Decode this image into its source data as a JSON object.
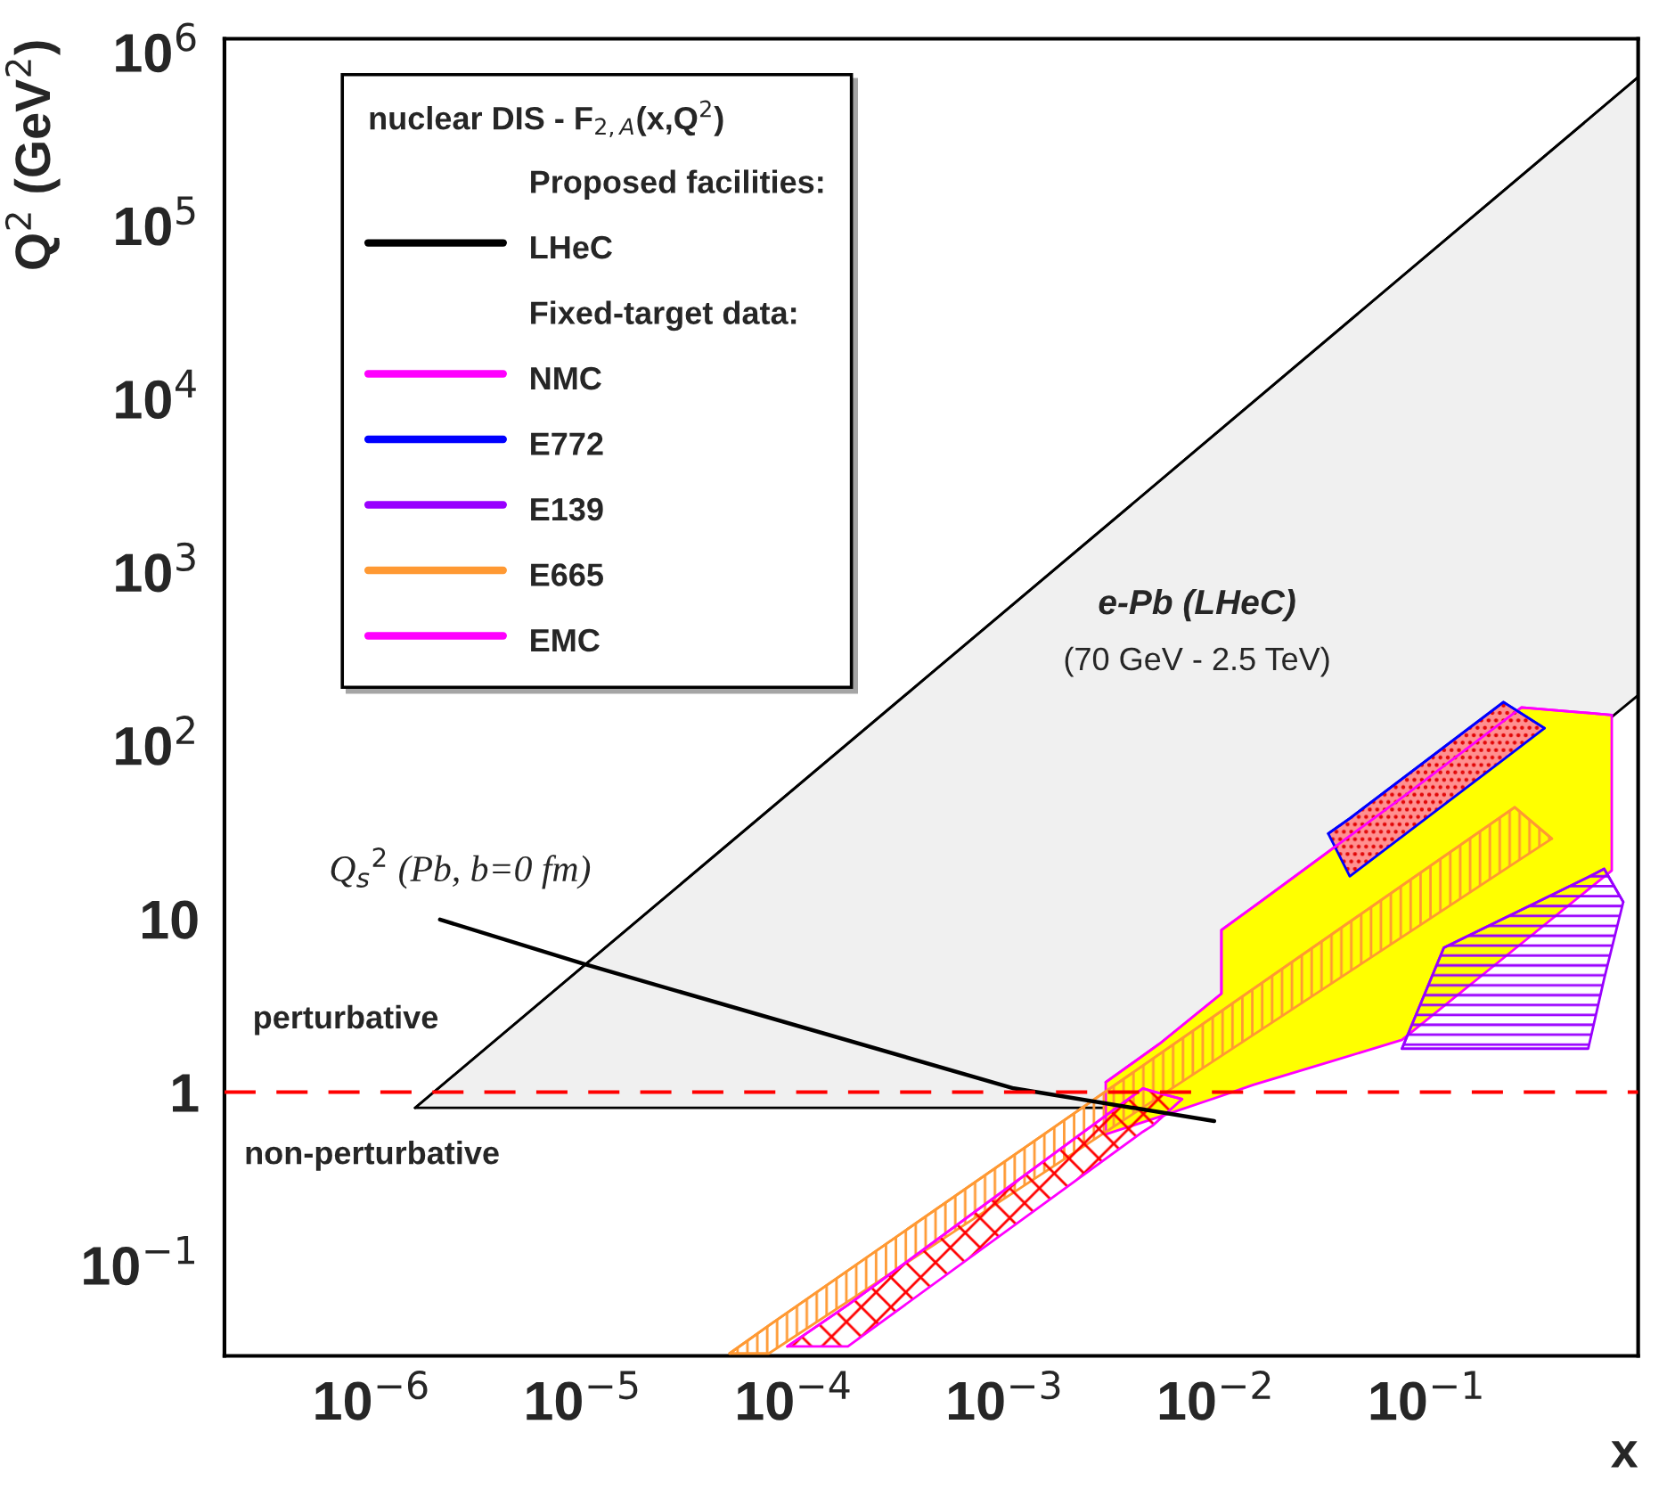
{
  "chart_data": {
    "type": "line",
    "xlabel": "x",
    "ylabel": "Q$^{2}$ (GeV$^{2}$)",
    "legend_title": "nuclear DIS - F$_{2,A}$(x,Q$^{2}$)",
    "log": "xy",
    "xlim": [
      2e-07,
      1
    ],
    "ylim": [
      0.03,
      1200000
    ],
    "xticks": [
      {
        "value": 1e-06,
        "label": "10$^{−6}$"
      },
      {
        "value": 1e-05,
        "label": "10$^{−5}$"
      },
      {
        "value": 0.0001,
        "label": "10$^{−4}$"
      },
      {
        "value": 0.001,
        "label": "10$^{−3}$"
      },
      {
        "value": 0.01,
        "label": "10$^{−2}$"
      },
      {
        "value": 0.1,
        "label": "10$^{−1}$"
      }
    ],
    "yticks": [
      {
        "value": 0.1,
        "label": "10$^{−1}$"
      },
      1,
      10,
      {
        "value": 100,
        "label": "10$^{2}$"
      },
      {
        "value": 1000,
        "label": "10$^{3}$"
      },
      {
        "value": 10000,
        "label": "10$^{4}$"
      },
      {
        "value": 100000,
        "label": "10$^{5}$"
      },
      {
        "value": 1000000,
        "label": "10$^{6}$"
      }
    ],
    "grid": false,
    "legend": "top left",
    "series": [
      {
        "name": "LHeC",
        "color": "#000000",
        "x": [
          1.6e-06,
          0.0042,
          1
        ],
        "lower": [
          0.81,
          0.81,
          195
        ],
        "upper": [
          0.81,
          2600,
          720000
        ],
        "values": [
          0.81,
          2600,
          720000
        ]
      },
      {
        "name": "NMC",
        "color": "#ff00ff",
        "x": [
          0.003,
          0.0054,
          0.0106,
          0.0106,
          0.015,
          0.035,
          0.076,
          0.28,
          0.75
        ],
        "lower": [
          0.57,
          0.72,
          0.95,
          0.95,
          1.1,
          1.5,
          2.0,
          7.2,
          19
        ],
        "upper": [
          1.14,
          1.9,
          3.7,
          8.6,
          11.7,
          25,
          50,
          166,
          150
        ],
        "values": [
          1.14,
          1.9,
          3.7,
          8.6,
          11.7,
          25,
          50,
          166,
          150
        ]
      },
      {
        "name": "E772",
        "color": "#0000ff",
        "x": [
          0.034,
          0.043,
          0.23,
          0.36
        ],
        "lower": [
          31,
          17.6,
          83,
          126
        ],
        "upper": [
          31,
          38,
          178,
          126
        ],
        "values": [
          31,
          38,
          178,
          126
        ]
      },
      {
        "name": "E139",
        "color": "#9900ff",
        "x": [
          0.076,
          0.12,
          0.58,
          0.69,
          0.85
        ],
        "lower": [
          1.78,
          1.78,
          1.78,
          4.5,
          12.5
        ],
        "upper": [
          1.78,
          6.8,
          17.4,
          19.4,
          12.5
        ],
        "values": [
          1.78,
          6.8,
          17.4,
          19.4,
          12.5
        ]
      },
      {
        "name": "E665",
        "color": "#ff9933",
        "x": [
          4.95e-05,
          7.6e-05,
          0.26,
          0.39
        ],
        "lower": [
          0.031,
          0.031,
          21,
          29
        ],
        "upper": [
          0.031,
          0.045,
          44,
          29
        ],
        "values": [
          0.031,
          0.045,
          44,
          29
        ]
      },
      {
        "name": "EMC",
        "color": "#ff00ff",
        "x": [
          9.3e-05,
          0.00018,
          0.0045,
          0.005,
          0.0069
        ],
        "lower": [
          0.034,
          0.034,
          0.59,
          0.64,
          0.91
        ],
        "upper": [
          0.034,
          0.059,
          1.05,
          1.01,
          0.91
        ],
        "values": [
          0.034,
          0.059,
          1.05,
          1.01,
          0.91
        ]
      },
      {
        "type": "line",
        "color": "#000000",
        "x": [
          2.1e-06,
          1e-05,
          0.0011,
          0.0098
        ],
        "values": [
          9.9,
          5.5,
          1.05,
          0.68
        ]
      }
    ],
    "ref_lines": [
      {
        "axis": "y",
        "value": 1,
        "color": "#ff0000",
        "line_style": "dashed"
      }
    ],
    "annotations": [
      "Proposed facilities:",
      "Fixed-target data:",
      "e-Pb (LHeC)",
      "(70 GeV - 2.5 TeV)",
      "perturbative",
      "non-perturbative",
      "Q$_{s}$$^{2}$ (Pb, b=0 fm)"
    ]
  }
}
